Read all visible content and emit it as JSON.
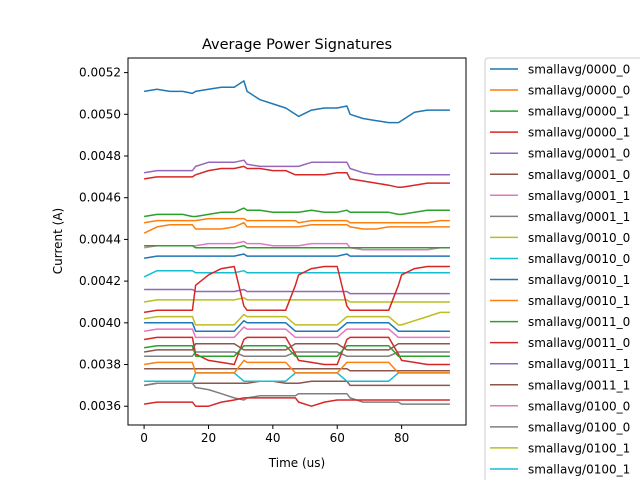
{
  "chart_data": {
    "type": "line",
    "title": "Average Power Signatures",
    "xlabel": "Time (us)",
    "ylabel": "Current (A)",
    "xlim": [
      -5,
      100
    ],
    "ylim": [
      0.00351,
      0.00527
    ],
    "x_ticks": [
      0,
      20,
      40,
      60,
      80
    ],
    "x_tick_labels": [
      "0",
      "20",
      "40",
      "60",
      "80"
    ],
    "y_ticks": [
      0.0036,
      0.0038,
      0.004,
      0.0042,
      0.0044,
      0.0046,
      0.0048,
      0.005,
      0.0052
    ],
    "y_tick_labels": [
      "0.0036",
      "0.0038",
      "0.0040",
      "0.0042",
      "0.0044",
      "0.0046",
      "0.0048",
      "0.0050",
      "0.0052"
    ],
    "grid": false,
    "legend_position": "outside-right",
    "x": [
      0,
      4,
      8,
      12,
      15,
      16,
      20,
      24,
      28,
      31,
      32,
      36,
      40,
      44,
      47,
      48,
      52,
      56,
      60,
      63,
      64,
      68,
      72,
      76,
      79,
      80,
      84,
      88,
      92,
      95
    ],
    "series": [
      {
        "name": "smallavg/0000_0",
        "color": "#1f77b4",
        "values": [
          0.00511,
          0.00512,
          0.00511,
          0.00511,
          0.0051,
          0.00511,
          0.00512,
          0.00513,
          0.00513,
          0.00516,
          0.00511,
          0.00507,
          0.00505,
          0.00503,
          0.005,
          0.00499,
          0.00502,
          0.00503,
          0.00503,
          0.00504,
          0.005,
          0.00498,
          0.00497,
          0.00496,
          0.00496,
          0.00497,
          0.00501,
          0.00502,
          0.00502,
          0.00502
        ]
      },
      {
        "name": "smallavg/0000_0",
        "color": "#ff7f0e",
        "values": [
          0.00443,
          0.00446,
          0.00447,
          0.00447,
          0.00447,
          0.00445,
          0.00445,
          0.00445,
          0.00446,
          0.00448,
          0.00446,
          0.00446,
          0.00446,
          0.00446,
          0.00446,
          0.00446,
          0.00447,
          0.00447,
          0.00447,
          0.00447,
          0.00446,
          0.00445,
          0.00445,
          0.00446,
          0.00446,
          0.00446,
          0.00446,
          0.00446,
          0.00446,
          0.00446
        ]
      },
      {
        "name": "smallavg/0000_1",
        "color": "#2ca02c",
        "values": [
          0.00451,
          0.00452,
          0.00452,
          0.00452,
          0.00451,
          0.00451,
          0.00452,
          0.00453,
          0.00453,
          0.00455,
          0.00454,
          0.00454,
          0.00453,
          0.00453,
          0.00453,
          0.00453,
          0.00454,
          0.00453,
          0.00453,
          0.00454,
          0.00453,
          0.00453,
          0.00453,
          0.00453,
          0.00452,
          0.00452,
          0.00453,
          0.00454,
          0.00454,
          0.00454
        ]
      },
      {
        "name": "smallavg/0000_1",
        "color": "#d62728",
        "values": [
          0.00469,
          0.0047,
          0.0047,
          0.0047,
          0.0047,
          0.00471,
          0.00473,
          0.00474,
          0.00474,
          0.00475,
          0.00474,
          0.00474,
          0.00473,
          0.00473,
          0.00471,
          0.00471,
          0.00471,
          0.00471,
          0.00472,
          0.00472,
          0.00469,
          0.00468,
          0.00467,
          0.00466,
          0.00465,
          0.00465,
          0.00466,
          0.00467,
          0.00467,
          0.00467
        ]
      },
      {
        "name": "smallavg/0001_0",
        "color": "#9467bd",
        "values": [
          0.00472,
          0.00473,
          0.00473,
          0.00473,
          0.00473,
          0.00475,
          0.00477,
          0.00477,
          0.00477,
          0.00478,
          0.00476,
          0.00475,
          0.00475,
          0.00475,
          0.00475,
          0.00475,
          0.00477,
          0.00477,
          0.00477,
          0.00477,
          0.00474,
          0.00472,
          0.00471,
          0.00471,
          0.00471,
          0.00471,
          0.00471,
          0.00471,
          0.00471,
          0.00471
        ]
      },
      {
        "name": "smallavg/0001_0",
        "color": "#8c564b",
        "values": [
          0.0037,
          0.00371,
          0.00371,
          0.00371,
          0.00371,
          0.00371,
          0.00371,
          0.00371,
          0.00371,
          0.00371,
          0.00371,
          0.00372,
          0.00372,
          0.00371,
          0.00371,
          0.00371,
          0.00372,
          0.00372,
          0.00372,
          0.00372,
          0.0037,
          0.0037,
          0.0037,
          0.0037,
          0.0037,
          0.0037,
          0.0037,
          0.0037,
          0.0037,
          0.0037
        ]
      },
      {
        "name": "smallavg/0001_1",
        "color": "#e377c2",
        "values": [
          0.00436,
          0.00437,
          0.00437,
          0.00437,
          0.00437,
          0.00437,
          0.00438,
          0.00438,
          0.00438,
          0.00439,
          0.00438,
          0.00438,
          0.00437,
          0.00437,
          0.00437,
          0.00437,
          0.00438,
          0.00438,
          0.00438,
          0.00438,
          0.00436,
          0.00435,
          0.00435,
          0.00435,
          0.00435,
          0.00435,
          0.00435,
          0.00435,
          0.00436,
          0.00436
        ]
      },
      {
        "name": "smallavg/0001_1",
        "color": "#7f7f7f",
        "values": [
          0.0037,
          0.00371,
          0.00371,
          0.00371,
          0.00371,
          0.00369,
          0.00368,
          0.00366,
          0.00364,
          0.00363,
          0.00364,
          0.00365,
          0.00365,
          0.00365,
          0.00365,
          0.00366,
          0.00366,
          0.00366,
          0.00366,
          0.00366,
          0.00364,
          0.00362,
          0.00362,
          0.00362,
          0.00362,
          0.00361,
          0.00361,
          0.00361,
          0.00361,
          0.00361
        ]
      },
      {
        "name": "smallavg/0010_0",
        "color": "#bcbd22",
        "values": [
          0.0041,
          0.00411,
          0.00411,
          0.00411,
          0.00411,
          0.00411,
          0.00411,
          0.00411,
          0.00411,
          0.00412,
          0.00411,
          0.00411,
          0.00411,
          0.00411,
          0.00411,
          0.00411,
          0.00411,
          0.00411,
          0.00411,
          0.00411,
          0.0041,
          0.0041,
          0.0041,
          0.0041,
          0.0041,
          0.0041,
          0.0041,
          0.0041,
          0.0041,
          0.0041
        ]
      },
      {
        "name": "smallavg/0010_0",
        "color": "#17becf",
        "values": [
          0.00422,
          0.00425,
          0.00425,
          0.00425,
          0.00425,
          0.00424,
          0.00424,
          0.00424,
          0.00424,
          0.00425,
          0.00424,
          0.00424,
          0.00424,
          0.00424,
          0.00424,
          0.00424,
          0.00424,
          0.00424,
          0.00424,
          0.00424,
          0.00424,
          0.00424,
          0.00424,
          0.00424,
          0.00424,
          0.00424,
          0.00424,
          0.00424,
          0.00424,
          0.00424
        ]
      },
      {
        "name": "smallavg/0010_1",
        "color": "#1f77b4",
        "values": [
          0.00431,
          0.00432,
          0.00432,
          0.00432,
          0.00432,
          0.00432,
          0.00432,
          0.00432,
          0.00432,
          0.00433,
          0.00432,
          0.00432,
          0.00432,
          0.00432,
          0.00432,
          0.00432,
          0.00432,
          0.00432,
          0.00432,
          0.00433,
          0.00432,
          0.00432,
          0.00432,
          0.00432,
          0.00432,
          0.00432,
          0.00432,
          0.00432,
          0.00432,
          0.00432
        ]
      },
      {
        "name": "smallavg/0010_1",
        "color": "#ff7f0e",
        "values": [
          0.00448,
          0.00449,
          0.00449,
          0.00449,
          0.00449,
          0.00449,
          0.0045,
          0.0045,
          0.0045,
          0.0045,
          0.00449,
          0.00449,
          0.00449,
          0.00449,
          0.00449,
          0.00448,
          0.00449,
          0.00449,
          0.00449,
          0.00449,
          0.00448,
          0.00448,
          0.00448,
          0.00448,
          0.00448,
          0.00448,
          0.00448,
          0.00448,
          0.00449,
          0.00449
        ]
      },
      {
        "name": "smallavg/0011_0",
        "color": "#2ca02c",
        "values": [
          0.00437,
          0.00437,
          0.00437,
          0.00437,
          0.00437,
          0.00436,
          0.00436,
          0.00436,
          0.00436,
          0.00437,
          0.00436,
          0.00436,
          0.00436,
          0.00436,
          0.00436,
          0.00436,
          0.00436,
          0.00436,
          0.00436,
          0.00436,
          0.00436,
          0.00436,
          0.00436,
          0.00436,
          0.00436,
          0.00436,
          0.00436,
          0.00436,
          0.00436,
          0.00436
        ]
      },
      {
        "name": "smallavg/0011_0",
        "color": "#d62728",
        "values": [
          0.00361,
          0.00362,
          0.00362,
          0.00362,
          0.00362,
          0.0036,
          0.0036,
          0.00362,
          0.00363,
          0.00364,
          0.00364,
          0.00364,
          0.00364,
          0.00364,
          0.00364,
          0.00362,
          0.0036,
          0.00362,
          0.00363,
          0.00363,
          0.00363,
          0.00363,
          0.00363,
          0.00363,
          0.00363,
          0.00363,
          0.00363,
          0.00363,
          0.00363,
          0.00363
        ]
      },
      {
        "name": "smallavg/0011_1",
        "color": "#9467bd",
        "values": [
          0.00416,
          0.00416,
          0.00416,
          0.00416,
          0.00416,
          0.00415,
          0.00415,
          0.00415,
          0.00415,
          0.00416,
          0.00415,
          0.00415,
          0.00415,
          0.00415,
          0.00415,
          0.00415,
          0.00415,
          0.00415,
          0.00415,
          0.00415,
          0.00414,
          0.00414,
          0.00414,
          0.00414,
          0.00414,
          0.00414,
          0.00414,
          0.00414,
          0.00414,
          0.00414
        ]
      },
      {
        "name": "smallavg/0011_1",
        "color": "#8c564b",
        "values": [
          0.00378,
          0.00378,
          0.00378,
          0.00378,
          0.00378,
          0.00378,
          0.00378,
          0.00378,
          0.00378,
          0.00378,
          0.00378,
          0.00378,
          0.00378,
          0.00378,
          0.00378,
          0.00378,
          0.00378,
          0.00378,
          0.00378,
          0.00378,
          0.00377,
          0.00377,
          0.00377,
          0.00377,
          0.00377,
          0.00377,
          0.00377,
          0.00377,
          0.00377,
          0.00377
        ]
      },
      {
        "name": "smallavg/0100_0",
        "color": "#e377c2",
        "values": [
          0.00396,
          0.00397,
          0.00397,
          0.00397,
          0.00397,
          0.00393,
          0.00393,
          0.00393,
          0.00393,
          0.00398,
          0.00397,
          0.00397,
          0.00397,
          0.00397,
          0.00393,
          0.00393,
          0.00393,
          0.00393,
          0.00393,
          0.00397,
          0.00397,
          0.00397,
          0.00397,
          0.00397,
          0.00393,
          0.00393,
          0.00393,
          0.00393,
          0.00393,
          0.00393
        ]
      },
      {
        "name": "smallavg/0100_0",
        "color": "#7f7f7f",
        "values": [
          0.00384,
          0.00384,
          0.00384,
          0.00384,
          0.00384,
          0.00386,
          0.00386,
          0.00386,
          0.00386,
          0.00384,
          0.00384,
          0.00384,
          0.00384,
          0.00384,
          0.00386,
          0.00386,
          0.00386,
          0.00386,
          0.00386,
          0.00384,
          0.00384,
          0.00384,
          0.00384,
          0.00384,
          0.00386,
          0.00386,
          0.00386,
          0.00386,
          0.00386,
          0.00386
        ]
      },
      {
        "name": "smallavg/0100_1",
        "color": "#bcbd22",
        "values": [
          0.00402,
          0.00403,
          0.00403,
          0.00403,
          0.00403,
          0.00399,
          0.00399,
          0.00399,
          0.00399,
          0.00404,
          0.00403,
          0.00403,
          0.00403,
          0.00403,
          0.00399,
          0.00399,
          0.00399,
          0.00399,
          0.00399,
          0.00403,
          0.00403,
          0.00403,
          0.00403,
          0.00403,
          0.00399,
          0.00399,
          0.00401,
          0.00403,
          0.00405,
          0.00405
        ]
      },
      {
        "name": "smallavg/0100_1",
        "color": "#17becf",
        "values": [
          0.00372,
          0.00372,
          0.00372,
          0.00372,
          0.00372,
          0.00376,
          0.00376,
          0.00376,
          0.00376,
          0.00372,
          0.00372,
          0.00372,
          0.00372,
          0.00372,
          0.00376,
          0.00376,
          0.00376,
          0.00376,
          0.00376,
          0.00372,
          0.00372,
          0.00372,
          0.00372,
          0.00372,
          0.00376,
          0.00376,
          0.00376,
          0.00376,
          0.00376,
          0.00376
        ]
      },
      {
        "name": "",
        "color": "#d62728",
        "values": [
          0.00392,
          0.00393,
          0.00393,
          0.00393,
          0.00393,
          0.00385,
          0.00382,
          0.00381,
          0.0038,
          0.00392,
          0.00393,
          0.00393,
          0.00393,
          0.00393,
          0.00385,
          0.00382,
          0.00381,
          0.0038,
          0.0038,
          0.00392,
          0.00393,
          0.00393,
          0.00393,
          0.00393,
          0.00385,
          0.00382,
          0.00381,
          0.0038,
          0.0038,
          0.0038
        ]
      },
      {
        "name": "",
        "color": "#d62728",
        "values": [
          0.00405,
          0.00406,
          0.00406,
          0.00406,
          0.00406,
          0.00418,
          0.00423,
          0.00426,
          0.00427,
          0.00408,
          0.00406,
          0.00406,
          0.00406,
          0.00406,
          0.00418,
          0.00423,
          0.00426,
          0.00427,
          0.00427,
          0.00408,
          0.00406,
          0.00406,
          0.00406,
          0.00406,
          0.00418,
          0.00423,
          0.00426,
          0.00427,
          0.00427,
          0.00427
        ]
      },
      {
        "name": "",
        "color": "#2ca02c",
        "values": [
          0.00388,
          0.00389,
          0.00389,
          0.00389,
          0.00389,
          0.00384,
          0.00384,
          0.00384,
          0.00384,
          0.00389,
          0.00389,
          0.00389,
          0.00389,
          0.00389,
          0.00384,
          0.00384,
          0.00384,
          0.00384,
          0.00384,
          0.00389,
          0.00389,
          0.00389,
          0.00389,
          0.00389,
          0.00384,
          0.00384,
          0.00384,
          0.00384,
          0.00384,
          0.00384
        ]
      },
      {
        "name": "",
        "color": "#ff7f0e",
        "values": [
          0.0038,
          0.00381,
          0.00381,
          0.00381,
          0.00381,
          0.00376,
          0.00376,
          0.00376,
          0.00376,
          0.00382,
          0.00381,
          0.00381,
          0.00381,
          0.00381,
          0.00376,
          0.00376,
          0.00376,
          0.00376,
          0.00376,
          0.00381,
          0.00381,
          0.00381,
          0.00381,
          0.00381,
          0.00376,
          0.00376,
          0.00376,
          0.00376,
          0.00376,
          0.00376
        ]
      },
      {
        "name": "",
        "color": "#1f77b4",
        "values": [
          0.004,
          0.004,
          0.004,
          0.004,
          0.004,
          0.00396,
          0.00396,
          0.00396,
          0.00396,
          0.00401,
          0.004,
          0.004,
          0.004,
          0.004,
          0.00396,
          0.00396,
          0.00396,
          0.00396,
          0.00396,
          0.004,
          0.004,
          0.004,
          0.004,
          0.004,
          0.00396,
          0.00396,
          0.00396,
          0.00396,
          0.00396,
          0.00396
        ]
      },
      {
        "name": "",
        "color": "#8c564b",
        "values": [
          0.00386,
          0.00387,
          0.00387,
          0.00387,
          0.00387,
          0.0039,
          0.0039,
          0.0039,
          0.0039,
          0.00387,
          0.00387,
          0.00387,
          0.00387,
          0.00387,
          0.0039,
          0.0039,
          0.0039,
          0.0039,
          0.0039,
          0.00387,
          0.00387,
          0.00387,
          0.00387,
          0.00387,
          0.0039,
          0.0039,
          0.0039,
          0.0039,
          0.0039,
          0.0039
        ]
      }
    ],
    "legend_entries": [
      "smallavg/0000_0",
      "smallavg/0000_0",
      "smallavg/0000_1",
      "smallavg/0000_1",
      "smallavg/0001_0",
      "smallavg/0001_0",
      "smallavg/0001_1",
      "smallavg/0001_1",
      "smallavg/0010_0",
      "smallavg/0010_0",
      "smallavg/0010_1",
      "smallavg/0010_1",
      "smallavg/0011_0",
      "smallavg/0011_0",
      "smallavg/0011_1",
      "smallavg/0011_1",
      "smallavg/0100_0",
      "smallavg/0100_0",
      "smallavg/0100_1",
      "smallavg/0100_1"
    ]
  }
}
